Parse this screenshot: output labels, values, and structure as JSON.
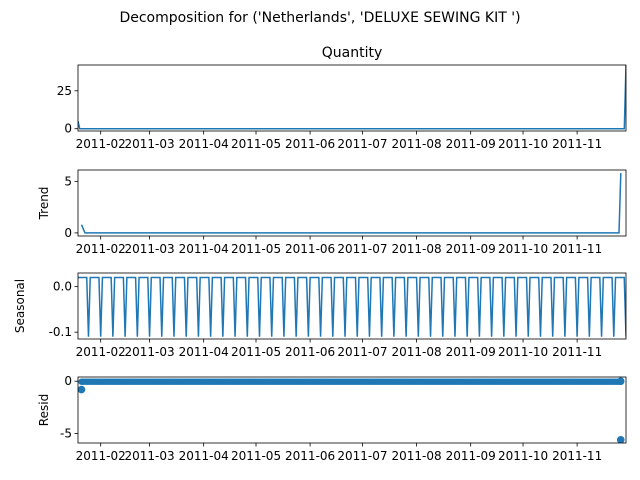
{
  "suptitle": "Decomposition for ('Netherlands', 'DELUXE SEWING KIT ')",
  "colors": {
    "series": "#1f77b4",
    "axis": "#000000",
    "background": "#ffffff"
  },
  "x_ticks": [
    "2011-02",
    "2011-03",
    "2011-04",
    "2011-05",
    "2011-06",
    "2011-07",
    "2011-08",
    "2011-09",
    "2011-10",
    "2011-11"
  ],
  "chart_data": [
    {
      "type": "line",
      "title": "Quantity",
      "ylabel": "",
      "x_range": [
        "2011-01-19",
        "2011-11-29"
      ],
      "ylim": [
        -1.5,
        42
      ],
      "yticks": [
        0,
        25
      ],
      "ytick_labels": [
        "0",
        "25"
      ],
      "series": [
        {
          "x": [
            "2011-01-19",
            "2011-01-20",
            "2011-11-28",
            "2011-11-29"
          ],
          "values": [
            5,
            0,
            0,
            42
          ]
        }
      ]
    },
    {
      "type": "line",
      "title": "",
      "ylabel": "Trend",
      "x_range": [
        "2011-01-19",
        "2011-11-29"
      ],
      "ylim": [
        -0.3,
        6.1
      ],
      "yticks": [
        0,
        5
      ],
      "ytick_labels": [
        "0",
        "5"
      ],
      "series": [
        {
          "x": [
            "2011-01-21",
            "2011-01-23",
            "2011-11-25",
            "2011-11-26"
          ],
          "values": [
            0.8,
            0,
            0,
            5.8
          ]
        }
      ]
    },
    {
      "type": "line",
      "title": "",
      "ylabel": "Seasonal",
      "x_range": [
        "2011-01-19",
        "2011-11-29"
      ],
      "ylim": [
        -0.115,
        0.03
      ],
      "yticks": [
        0.0,
        -0.1
      ],
      "ytick_labels": [
        "0.0",
        "-0.1"
      ],
      "period_days": 7,
      "weekly_pattern": [
        0.02,
        0.02,
        0.02,
        0.02,
        0.02,
        0.02,
        -0.11
      ]
    },
    {
      "type": "scatter",
      "title": "",
      "ylabel": "Resid",
      "x_range": [
        "2011-01-19",
        "2011-11-29"
      ],
      "ylim": [
        -5.9,
        0.4
      ],
      "yticks": [
        0,
        -5
      ],
      "ytick_labels": [
        "0",
        "-5"
      ],
      "baseline_value": -0.05,
      "points": [
        {
          "x": "2011-01-21",
          "y": -0.8
        },
        {
          "x": "2011-11-26",
          "y": -5.6
        },
        {
          "x": "2011-11-26",
          "y": 0.0
        }
      ]
    }
  ]
}
